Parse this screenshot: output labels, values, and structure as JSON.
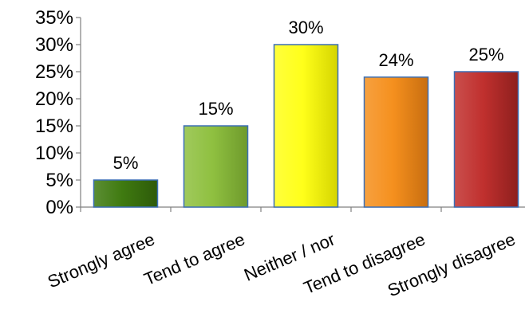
{
  "chart_data": {
    "type": "bar",
    "categories": [
      "Strongly agree",
      "Tend to agree",
      "Neither / nor",
      "Tend to disagree",
      "Strongly disagree"
    ],
    "values": [
      5,
      15,
      30,
      24,
      25
    ],
    "data_labels": [
      "5%",
      "15%",
      "30%",
      "24%",
      "25%"
    ],
    "bar_colors": [
      "#3f7a10",
      "#8fc040",
      "#ffff1a",
      "#f5901e",
      "#c0302e"
    ],
    "bar_edge_colors": [
      "#2d5a0a",
      "#6e9a2c",
      "#d4d400",
      "#c86e10",
      "#8e1f1e"
    ],
    "ylim": [
      0,
      35
    ],
    "y_ticks": [
      0,
      5,
      10,
      15,
      20,
      25,
      30,
      35
    ],
    "y_tick_labels": [
      "0%",
      "5%",
      "10%",
      "15%",
      "20%",
      "25%",
      "30%",
      "35%"
    ],
    "grid": false,
    "legend": "none",
    "title": "",
    "xlabel": "",
    "ylabel": ""
  }
}
